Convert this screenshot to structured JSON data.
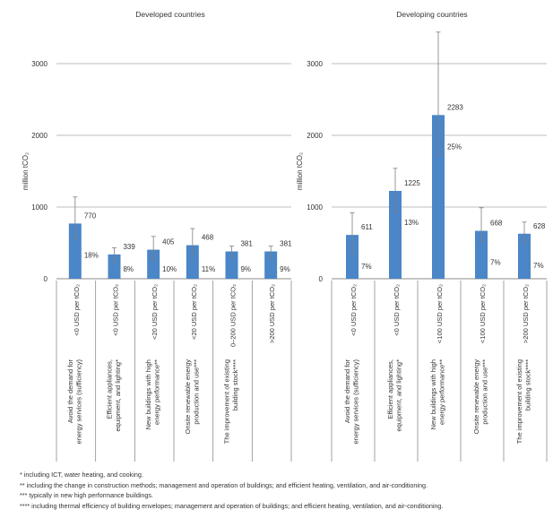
{
  "chart_data": [
    {
      "type": "bar",
      "title": "Developed countries",
      "ylabel": "million tCO₂",
      "ylim": [
        0,
        3000
      ],
      "yticks": [
        0,
        1000,
        2000,
        3000
      ],
      "grid": true,
      "bar_color": "#4a86c8",
      "categories": [
        {
          "cost": "<0 USD per tCO₂",
          "label": [
            "Avoid the demand for",
            "energy services (sufficiency)"
          ]
        },
        {
          "cost": "<0 USD per tCO₂",
          "label": [
            "Efficient appliances,",
            "equipment, and lighting*"
          ]
        },
        {
          "cost": "<20 USD per tCO₂",
          "label": [
            "New buildings with high",
            "energy performance**"
          ]
        },
        {
          "cost": "<20 USD per tCO₂",
          "label": [
            "Onsite renewable energy",
            "production and use***"
          ]
        },
        {
          "cost": "0–200 USD per tCO₂",
          "label": [
            "The improvement of existing",
            "building stock****"
          ]
        },
        {
          "cost": ">200 USD per tCO₂",
          "label": [
            ""
          ]
        }
      ],
      "values": [
        770,
        339,
        405,
        468,
        381,
        381
      ],
      "value_labels": [
        "770",
        "339",
        "405",
        "468",
        "381",
        "381"
      ],
      "error_low": [
        560,
        230,
        270,
        315,
        295,
        290
      ],
      "error_high": [
        1140,
        430,
        590,
        700,
        455,
        455
      ],
      "percent_labels": [
        "18%",
        "8%",
        "10%",
        "11%",
        "9%",
        "9%"
      ]
    },
    {
      "type": "bar",
      "title": "Developing countries",
      "ylabel": "million tCO₂",
      "ylim": [
        0,
        3000
      ],
      "yticks": [
        0,
        1000,
        2000,
        3000
      ],
      "grid": true,
      "bar_color": "#4a86c8",
      "categories": [
        {
          "cost": "<0 USD per tCO₂",
          "label": [
            "Avoid the demand for",
            "energy services (sufficiency)"
          ]
        },
        {
          "cost": "<0 USD per tCO₂",
          "label": [
            "Efficient appliances,",
            "equipment, and lighting*"
          ]
        },
        {
          "cost": "<100 USD per tCO₂",
          "label": [
            "New buildings with high",
            "energy performance**"
          ]
        },
        {
          "cost": "<100 USD per tCO₂",
          "label": [
            "Onsite renewable energy",
            "production and use***"
          ]
        },
        {
          "cost": ">200 USD per tCO₂",
          "label": [
            "The improvement of existing",
            "building stock****"
          ]
        }
      ],
      "values": [
        611,
        1225,
        2283,
        668,
        628
      ],
      "value_labels": [
        "611",
        "1225",
        "2283",
        "668",
        "628"
      ],
      "error_low": [
        320,
        930,
        1720,
        520,
        500
      ],
      "error_high": [
        920,
        1540,
        3440,
        990,
        790
      ],
      "percent_labels": [
        "7%",
        "13%",
        "25%",
        "7%",
        "7%"
      ]
    }
  ],
  "footnotes": [
    "* including ICT, water heating, and cooking.",
    "** including the change in construction methods;  management and operation of buildings; and efficient heating, ventilation, and air-conditioning.",
    "*** typically in new high performance buildings.",
    "**** including thermal efficiency of building envelopes; management and operation of buildings; and efficient heating, ventilation, and air-conditioning."
  ]
}
